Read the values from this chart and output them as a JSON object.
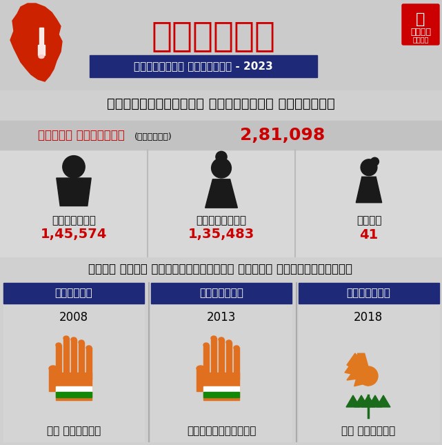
{
  "bg_color": "#d0d0d0",
  "title_kannada": "ಕ౼ನಾಟಕ",
  "subtitle_kannada": "ವಿಧಾನಸಭೆ ಚುನಾವಣೆ - 2023",
  "constituency_title": "ಗೋವಿಂದರಾಜನಗರ ವಿಧಾನಸಭೆ ಕ್ಷೇತ್ರ",
  "total_voters_label": "ಒಟ್ಟು ಮತದಾರರು",
  "approx_label": "(ಅಂದಾಜು)",
  "total_voters_value": "2,81,098",
  "male_label": "ಪುರುಷರು",
  "male_value": "1,45,574",
  "female_label": "ಮಹಿಳೆಯರು",
  "female_value": "1,35,483",
  "other_label": "ಇತರೆ",
  "other_value": "41",
  "past_title": "ಕಳೆದ ಮೂರು ಚುನಾವಣೆಯಲ್ಲಿ ಗೆದ್ದ ಅಭ್ಯರ್ಥಿಗಳು",
  "party1_label": "ಬಿಜೆಪಿ",
  "party2_label": "ಕಾಂಗೆಸ್",
  "party3_label": "ಕಾಂಗೆಸ್",
  "year1": "2008",
  "year2": "2013",
  "year3": "2018",
  "candidate1": "ವಿ ಸೋಮಣ್ಣ",
  "candidate2": "ಪ್ರಿಯಾಕೃಷ್ಣ",
  "candidate3": "ವಿ ಸೋಮಣ್ಣ",
  "party_banner_color": "#1e2a78",
  "red_color": "#cc0000",
  "title_color": "#cc0000",
  "etv_bg": "#cc0000",
  "subtitle_bg": "#1e2a78",
  "voters_bg": "#c8c8c8",
  "col_bg": "#d8d8d8",
  "white": "#ffffff"
}
